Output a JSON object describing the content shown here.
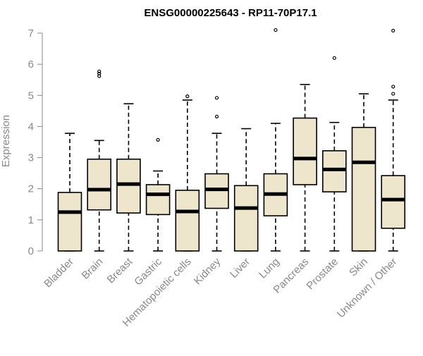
{
  "chart_data": {
    "type": "boxplot",
    "title": "ENSG00000225643 - RP11-70P17.1",
    "ylabel": "Expression",
    "ylim": [
      0,
      7
    ],
    "yticks": [
      "0",
      "1",
      "2",
      "3",
      "4",
      "5",
      "6",
      "7"
    ],
    "grid": false,
    "box_color": "#ede6cc",
    "categories": [
      "Bladder",
      "Brain",
      "Breast",
      "Gastric",
      "Hematopoietic cells",
      "Kidney",
      "Liver",
      "Lung",
      "Pancreas",
      "Prostate",
      "Skin",
      "Unknown / Other"
    ],
    "boxes": [
      {
        "min": 0,
        "q1": 0,
        "median": 1.25,
        "q3": 1.88,
        "max": 3.78,
        "outliers": []
      },
      {
        "min": 0,
        "q1": 1.32,
        "median": 1.97,
        "q3": 2.95,
        "max": 3.55,
        "outliers": [
          5.62,
          5.7,
          5.77
        ]
      },
      {
        "min": 0,
        "q1": 1.22,
        "median": 2.15,
        "q3": 2.95,
        "max": 4.73,
        "outliers": []
      },
      {
        "min": 0,
        "q1": 1.17,
        "median": 1.82,
        "q3": 2.13,
        "max": 2.57,
        "outliers": [
          3.57
        ]
      },
      {
        "min": 0,
        "q1": 0,
        "median": 1.27,
        "q3": 1.95,
        "max": 4.85,
        "outliers": [
          4.97
        ]
      },
      {
        "min": 0,
        "q1": 1.37,
        "median": 1.98,
        "q3": 2.48,
        "max": 3.78,
        "outliers": [
          4.32,
          4.92
        ]
      },
      {
        "min": 0,
        "q1": 0,
        "median": 1.38,
        "q3": 2.1,
        "max": 3.93,
        "outliers": []
      },
      {
        "min": 0,
        "q1": 1.13,
        "median": 1.83,
        "q3": 2.48,
        "max": 4.1,
        "outliers": [
          7.1
        ]
      },
      {
        "min": 0,
        "q1": 2.13,
        "median": 2.97,
        "q3": 4.27,
        "max": 5.35,
        "outliers": []
      },
      {
        "min": 0,
        "q1": 1.9,
        "median": 2.62,
        "q3": 3.22,
        "max": 4.13,
        "outliers": [
          6.2
        ]
      },
      {
        "min": 0,
        "q1": 0,
        "median": 2.85,
        "q3": 3.97,
        "max": 5.05,
        "outliers": []
      },
      {
        "min": 0,
        "q1": 0.73,
        "median": 1.65,
        "q3": 2.42,
        "max": 4.85,
        "outliers": [
          5.05,
          5.28,
          7.08
        ]
      }
    ]
  }
}
